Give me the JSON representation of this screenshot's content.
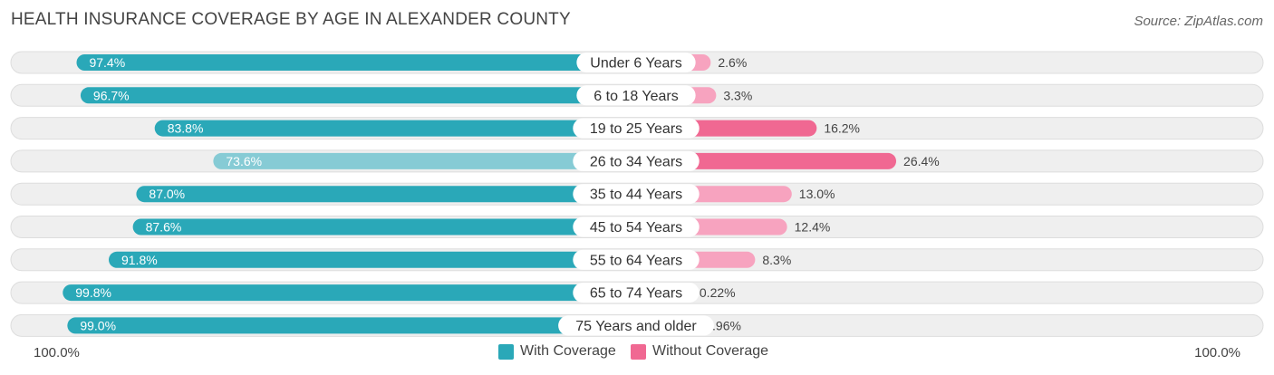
{
  "chart_data": {
    "type": "bar",
    "orientation": "horizontal-diverging",
    "title": "HEALTH INSURANCE COVERAGE BY AGE IN ALEXANDER COUNTY",
    "source": "Source: ZipAtlas.com",
    "categories": [
      "Under 6 Years",
      "6 to 18 Years",
      "19 to 25 Years",
      "26 to 34 Years",
      "35 to 44 Years",
      "45 to 54 Years",
      "55 to 64 Years",
      "65 to 74 Years",
      "75 Years and older"
    ],
    "series": [
      {
        "name": "With Coverage",
        "values": [
          97.4,
          96.7,
          83.8,
          73.6,
          87.0,
          87.6,
          91.8,
          99.8,
          99.0
        ],
        "labels": [
          "97.4%",
          "96.7%",
          "83.8%",
          "73.6%",
          "87.0%",
          "87.6%",
          "91.8%",
          "99.8%",
          "99.0%"
        ]
      },
      {
        "name": "Without Coverage",
        "values": [
          2.6,
          3.3,
          16.2,
          26.4,
          13.0,
          12.4,
          8.3,
          0.22,
          0.96
        ],
        "labels": [
          "2.6%",
          "3.3%",
          "16.2%",
          "26.4%",
          "13.0%",
          "12.4%",
          "8.3%",
          "0.22%",
          "0.96%"
        ]
      }
    ],
    "xlim": [
      -100,
      100
    ],
    "axis_left_label": "100.0%",
    "axis_right_label": "100.0%",
    "legend_position": "bottom-center"
  },
  "colors": {
    "with_strong": "#2aa8b8",
    "with_light": "#86cbd5",
    "without_strong": "#f06892",
    "without_light": "#f7a3bf",
    "row_bg": "#efefef",
    "row_border": "#dddddd"
  }
}
